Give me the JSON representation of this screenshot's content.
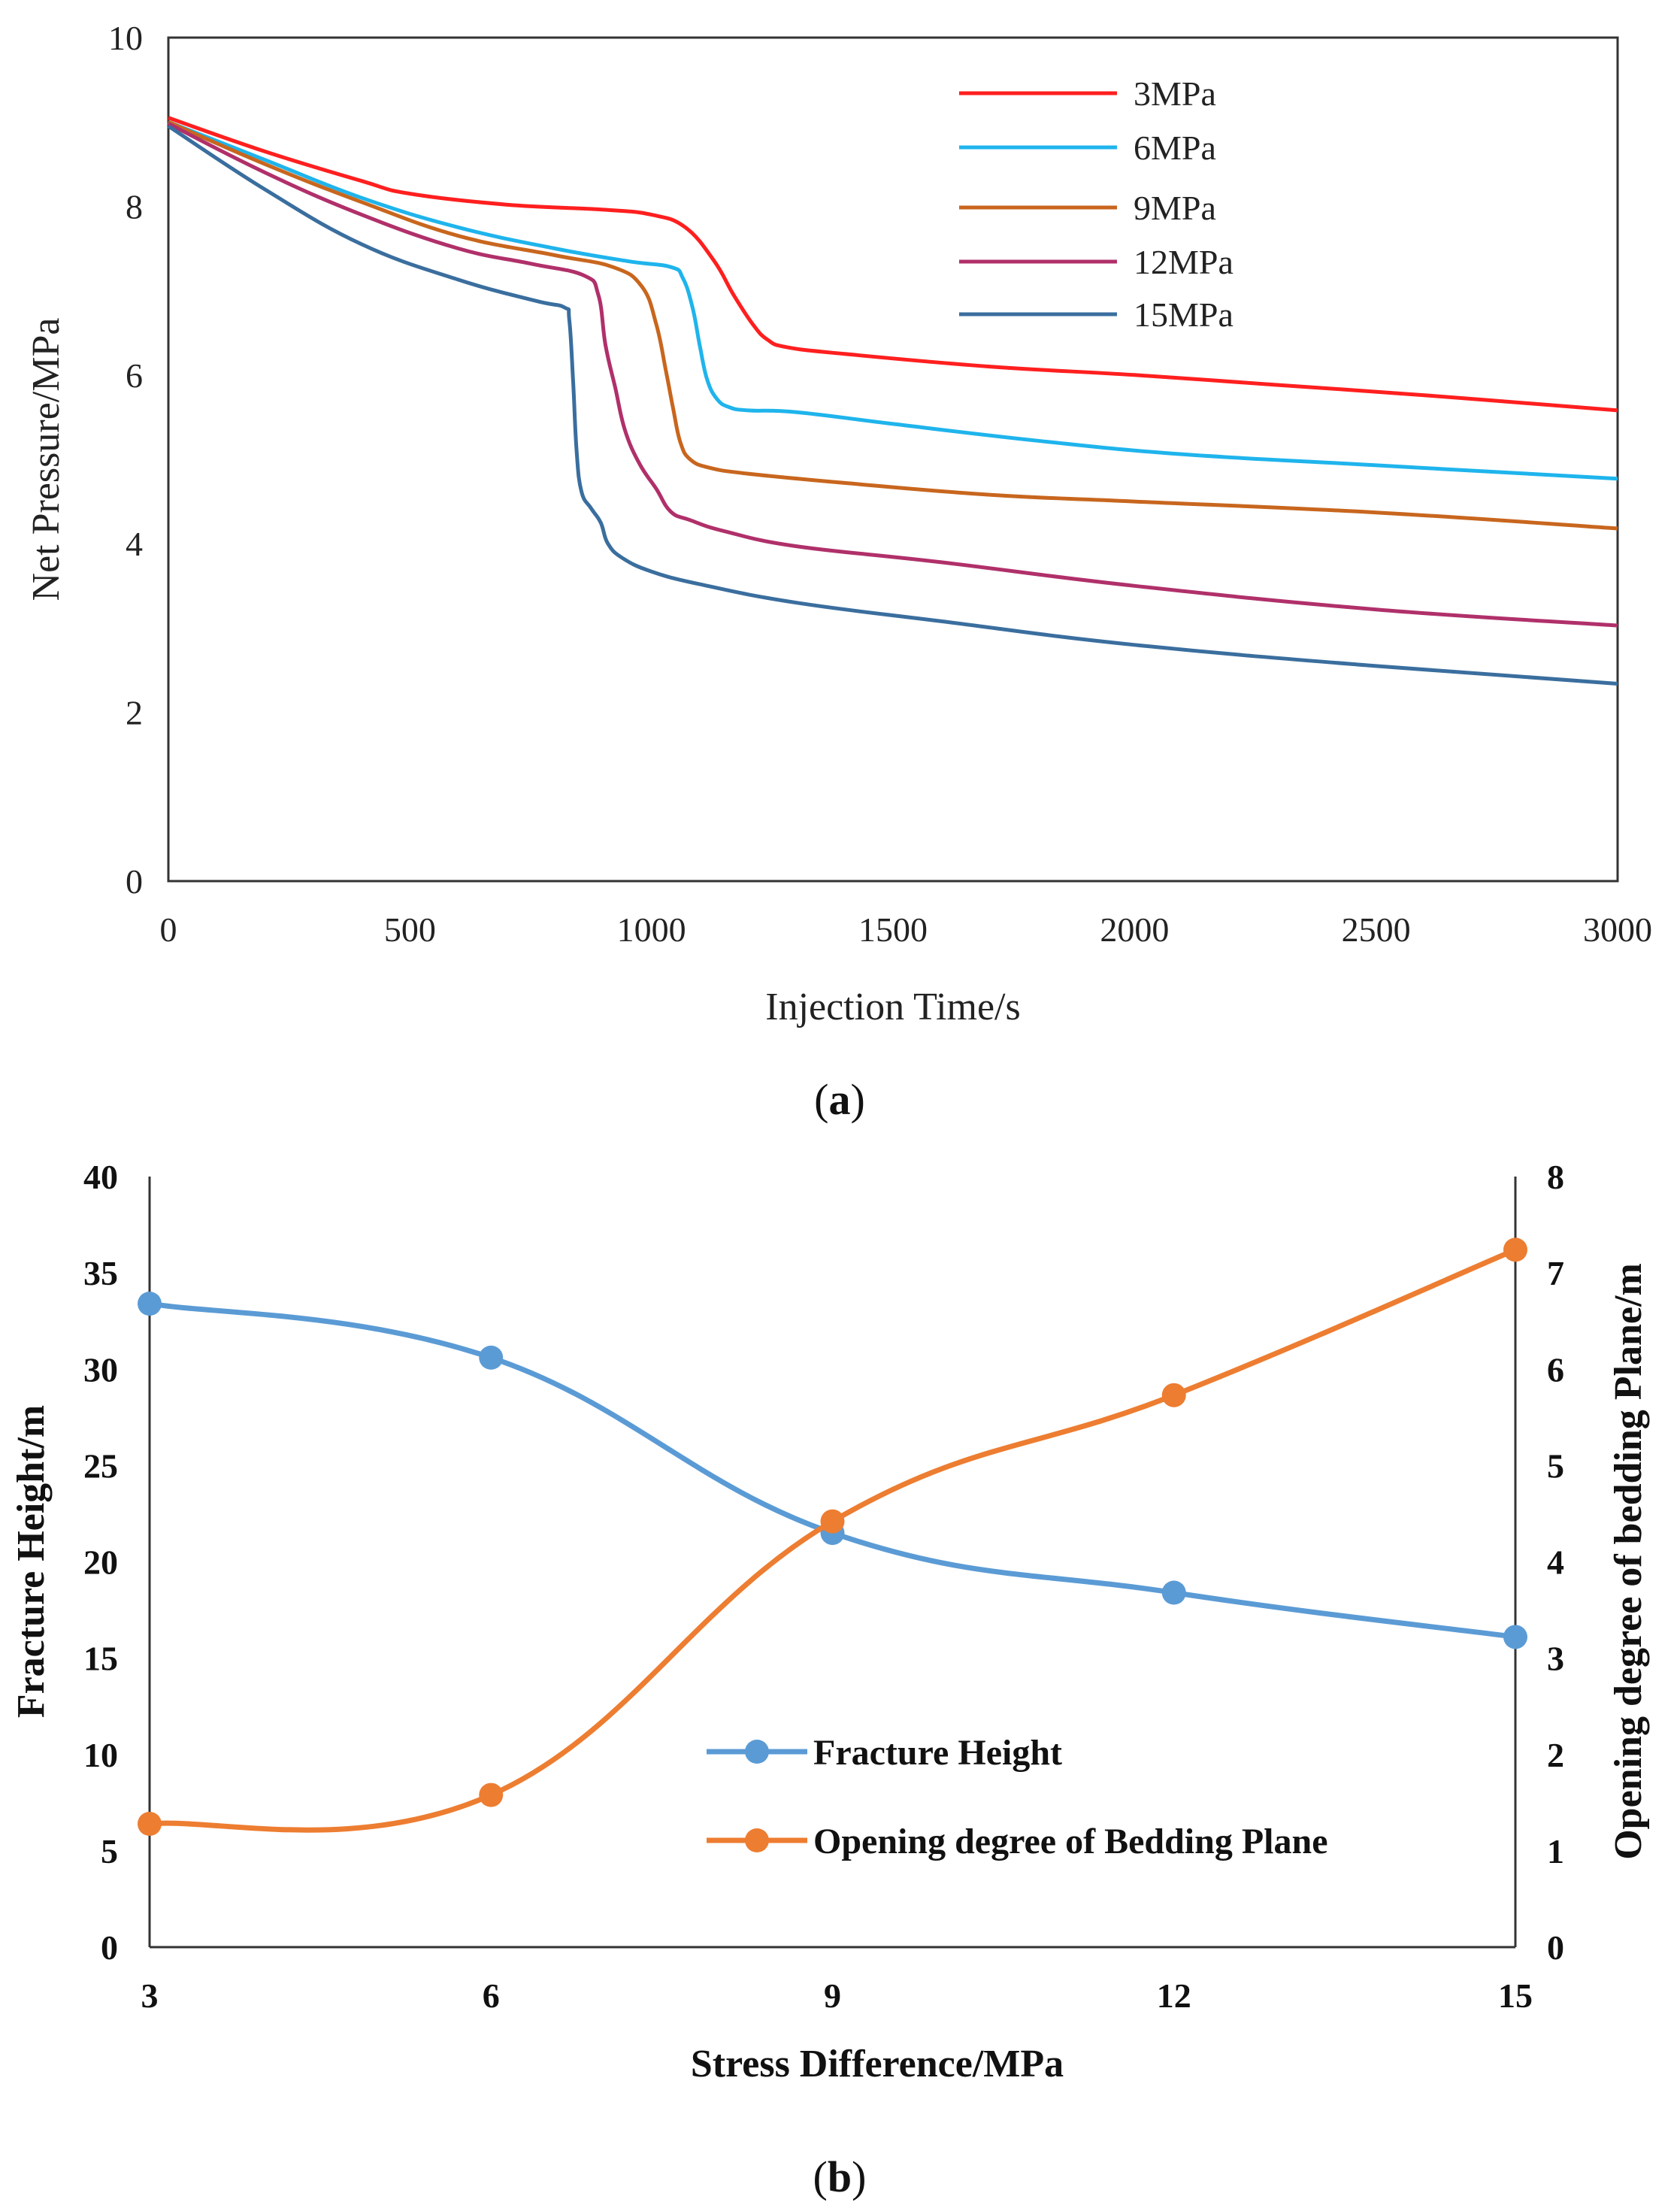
{
  "chart_data": [
    {
      "type": "line",
      "panel": "(a)",
      "caption": {
        "open": "(",
        "letter": "a",
        "close": ")"
      },
      "xlabel": "Injection Time/s",
      "ylabel": "Net Pressure/MPa",
      "xlim": [
        0,
        3000
      ],
      "ylim": [
        0,
        10
      ],
      "xticks": [
        0,
        500,
        1000,
        1500,
        2000,
        2500,
        3000
      ],
      "yticks": [
        0,
        2,
        4,
        6,
        8,
        10
      ],
      "legend_position": "top-right",
      "series": [
        {
          "name": "3MPa",
          "color": "#ff1f1f",
          "x": [
            0,
            200,
            400,
            500,
            700,
            900,
            1000,
            1070,
            1130,
            1170,
            1210,
            1240,
            1280,
            1400,
            1700,
            2000,
            2300,
            2600,
            3000
          ],
          "y": [
            9.05,
            8.65,
            8.3,
            8.15,
            8.02,
            7.96,
            7.9,
            7.75,
            7.35,
            6.95,
            6.6,
            6.42,
            6.33,
            6.25,
            6.1,
            6.0,
            5.88,
            5.76,
            5.58
          ]
        },
        {
          "name": "6MPa",
          "color": "#1fb4ec",
          "x": [
            0,
            200,
            400,
            600,
            800,
            950,
            1040,
            1065,
            1085,
            1100,
            1115,
            1135,
            1160,
            1200,
            1300,
            1500,
            1800,
            2100,
            2500,
            3000
          ],
          "y": [
            9.0,
            8.55,
            8.1,
            7.75,
            7.5,
            7.35,
            7.28,
            7.15,
            6.8,
            6.35,
            5.95,
            5.72,
            5.62,
            5.58,
            5.56,
            5.42,
            5.22,
            5.06,
            4.93,
            4.77
          ]
        },
        {
          "name": "9MPa",
          "color": "#c8661e",
          "x": [
            0,
            200,
            400,
            600,
            800,
            920,
            980,
            1010,
            1030,
            1045,
            1060,
            1080,
            1120,
            1200,
            1400,
            1700,
            2000,
            2500,
            3000
          ],
          "y": [
            9.0,
            8.5,
            8.05,
            7.65,
            7.42,
            7.28,
            7.05,
            6.6,
            6.05,
            5.6,
            5.2,
            5.0,
            4.9,
            4.83,
            4.72,
            4.58,
            4.5,
            4.37,
            4.18
          ]
        },
        {
          "name": "12MPa",
          "color": "#b0306a",
          "x": [
            0,
            200,
            400,
            600,
            750,
            860,
            890,
            905,
            925,
            945,
            975,
            1010,
            1040,
            1080,
            1150,
            1300,
            1600,
            2000,
            2500,
            3000
          ],
          "y": [
            8.98,
            8.4,
            7.9,
            7.5,
            7.32,
            7.18,
            6.95,
            6.35,
            5.85,
            5.35,
            4.95,
            4.65,
            4.38,
            4.28,
            4.15,
            3.97,
            3.78,
            3.5,
            3.22,
            3.03
          ]
        },
        {
          "name": "15MPa",
          "color": "#3a6e9e",
          "x": [
            0,
            200,
            400,
            600,
            760,
            820,
            830,
            838,
            845,
            855,
            875,
            895,
            910,
            940,
            1000,
            1100,
            1300,
            1600,
            2000,
            2500,
            3000
          ],
          "y": [
            8.95,
            8.2,
            7.55,
            7.13,
            6.88,
            6.8,
            6.65,
            5.9,
            5.1,
            4.62,
            4.42,
            4.25,
            4.0,
            3.83,
            3.67,
            3.52,
            3.3,
            3.08,
            2.8,
            2.55,
            2.34
          ]
        }
      ]
    },
    {
      "type": "line",
      "panel": "(b)",
      "caption": {
        "open": "(",
        "letter": "b",
        "close": ")"
      },
      "xlabel": "Stress Difference/MPa",
      "ylabel": "Fracture Height/m",
      "ylabel_right": "Opening degree of bedding Plane/m",
      "categories": [
        3,
        6,
        9,
        12,
        15
      ],
      "ylim": [
        0,
        40
      ],
      "ylim_right": [
        0,
        8
      ],
      "yticks": [
        0,
        5,
        10,
        15,
        20,
        25,
        30,
        35,
        40
      ],
      "yticks_right": [
        0,
        1,
        2,
        3,
        4,
        5,
        6,
        7,
        8
      ],
      "legend_position": "bottom-center",
      "series": [
        {
          "name": "Fracture Height",
          "axis": "left",
          "color": "#5b9bd5",
          "values": [
            33.4,
            30.6,
            21.5,
            18.4,
            16.1
          ]
        },
        {
          "name": "Opening degree of Bedding Plane",
          "axis": "right",
          "color": "#ed7d31",
          "values": [
            1.28,
            1.58,
            4.42,
            5.73,
            7.24
          ]
        }
      ]
    }
  ]
}
